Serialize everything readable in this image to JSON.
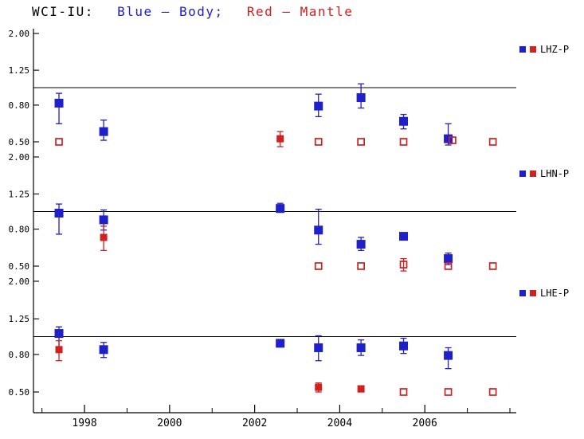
{
  "chart_data": {
    "type": "scatter",
    "title_parts": [
      {
        "text": "WCI-IU:",
        "color": "#000000"
      },
      {
        "text": "Blue – Body;",
        "color": "#2020c8"
      },
      {
        "text": "Red – Mantle",
        "color": "#d02020"
      }
    ],
    "y_scale": "log",
    "ylim": [
      0.5,
      2.0
    ],
    "y_ticks": [
      "2.00",
      "1.25",
      "0.80",
      "0.50"
    ],
    "reference_line": 1.0,
    "xlim": [
      1996.8,
      2008.15
    ],
    "x_major_ticks": [
      1998,
      2000,
      2002,
      2004,
      2006
    ],
    "x_minor_ticks": [
      1997,
      1999,
      2001,
      2003,
      2005,
      2007,
      2008
    ],
    "grid": false,
    "legend_position": "right",
    "colors": {
      "body": "#2020c8",
      "mantle": "#d02020",
      "axis": "#000000"
    },
    "panels": [
      {
        "label": "LHZ-P",
        "series": [
          {
            "name": "Body",
            "color_key": "body",
            "points": [
              {
                "x": 1997.4,
                "y": 0.82,
                "lo": 0.63,
                "hi": 0.93
              },
              {
                "x": 1998.45,
                "y": 0.57,
                "lo": 0.51,
                "hi": 0.66
              },
              {
                "x": 2003.5,
                "y": 0.79,
                "lo": 0.69,
                "hi": 0.92
              },
              {
                "x": 2004.5,
                "y": 0.88,
                "lo": 0.77,
                "hi": 1.05
              },
              {
                "x": 2005.5,
                "y": 0.65,
                "lo": 0.59,
                "hi": 0.71
              },
              {
                "x": 2006.55,
                "y": 0.52,
                "lo": 0.48,
                "hi": 0.63
              }
            ]
          },
          {
            "name": "Mantle",
            "color_key": "mantle",
            "points": [
              {
                "x": 1997.4,
                "y": 0.5,
                "filled": false
              },
              {
                "x": 2002.6,
                "y": 0.52,
                "lo": 0.47,
                "hi": 0.57,
                "filled": true
              },
              {
                "x": 2003.5,
                "y": 0.5,
                "filled": false
              },
              {
                "x": 2004.5,
                "y": 0.5,
                "filled": false
              },
              {
                "x": 2005.5,
                "y": 0.5,
                "filled": false
              },
              {
                "x": 2006.65,
                "y": 0.51,
                "filled": false
              },
              {
                "x": 2007.6,
                "y": 0.5,
                "filled": false
              }
            ]
          }
        ]
      },
      {
        "label": "LHN-P",
        "series": [
          {
            "name": "Body",
            "color_key": "body",
            "points": [
              {
                "x": 1997.4,
                "y": 0.98,
                "lo": 0.75,
                "hi": 1.1
              },
              {
                "x": 1998.45,
                "y": 0.9,
                "lo": 0.79,
                "hi": 1.02
              },
              {
                "x": 2002.6,
                "y": 1.04,
                "lo": 0.99,
                "hi": 1.11
              },
              {
                "x": 2003.5,
                "y": 0.79,
                "lo": 0.66,
                "hi": 1.03
              },
              {
                "x": 2004.5,
                "y": 0.66,
                "lo": 0.61,
                "hi": 0.72
              },
              {
                "x": 2005.5,
                "y": 0.73
              },
              {
                "x": 2006.55,
                "y": 0.55,
                "lo": 0.51,
                "hi": 0.59
              }
            ]
          },
          {
            "name": "Mantle",
            "color_key": "mantle",
            "points": [
              {
                "x": 1998.45,
                "y": 0.72,
                "lo": 0.61,
                "hi": 0.83,
                "filled": true
              },
              {
                "x": 2003.5,
                "y": 0.5,
                "filled": false
              },
              {
                "x": 2004.5,
                "y": 0.5,
                "filled": false
              },
              {
                "x": 2005.5,
                "y": 0.51,
                "lo": 0.47,
                "hi": 0.55,
                "filled": false
              },
              {
                "x": 2006.55,
                "y": 0.5,
                "filled": false
              },
              {
                "x": 2007.6,
                "y": 0.5,
                "filled": false
              }
            ]
          }
        ]
      },
      {
        "label": "LHE-P",
        "series": [
          {
            "name": "Body",
            "color_key": "body",
            "points": [
              {
                "x": 1997.4,
                "y": 1.04,
                "lo": 0.88,
                "hi": 1.13
              },
              {
                "x": 1998.45,
                "y": 0.85,
                "lo": 0.77,
                "hi": 0.93
              },
              {
                "x": 2002.6,
                "y": 0.92,
                "lo": 0.89,
                "hi": 0.95
              },
              {
                "x": 2003.5,
                "y": 0.87,
                "lo": 0.74,
                "hi": 1.01
              },
              {
                "x": 2004.5,
                "y": 0.87,
                "lo": 0.79,
                "hi": 0.96
              },
              {
                "x": 2005.5,
                "y": 0.89,
                "lo": 0.81,
                "hi": 0.98
              },
              {
                "x": 2006.55,
                "y": 0.79,
                "lo": 0.67,
                "hi": 0.87
              }
            ]
          },
          {
            "name": "Mantle",
            "color_key": "mantle",
            "points": [
              {
                "x": 1997.4,
                "y": 0.85,
                "lo": 0.74,
                "hi": 0.95,
                "filled": true
              },
              {
                "x": 2003.5,
                "y": 0.53,
                "lo": 0.5,
                "hi": 0.56,
                "filled": true
              },
              {
                "x": 2004.5,
                "y": 0.52,
                "lo": 0.5,
                "hi": 0.54,
                "filled": true
              },
              {
                "x": 2005.5,
                "y": 0.5,
                "filled": false
              },
              {
                "x": 2006.55,
                "y": 0.5,
                "filled": false
              },
              {
                "x": 2007.6,
                "y": 0.5,
                "filled": false
              }
            ]
          }
        ]
      }
    ]
  }
}
